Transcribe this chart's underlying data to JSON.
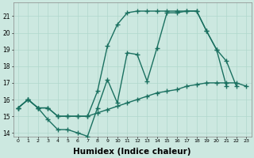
{
  "background_color": "#cce8e0",
  "grid_color": "#b0d8cc",
  "line_color": "#1a7060",
  "line_width": 1.0,
  "marker_size": 4,
  "xlabel": "Humidex (Indice chaleur)",
  "xlabel_fontsize": 7.5,
  "xlim": [
    -0.5,
    23.5
  ],
  "ylim": [
    13.8,
    21.8
  ],
  "yticks": [
    14,
    15,
    16,
    17,
    18,
    19,
    20,
    21
  ],
  "xticks": [
    0,
    1,
    2,
    3,
    4,
    5,
    6,
    7,
    8,
    9,
    10,
    11,
    12,
    13,
    14,
    15,
    16,
    17,
    18,
    19,
    20,
    21,
    22,
    23
  ],
  "series1_x": [
    0,
    1,
    2,
    3,
    4,
    5,
    6,
    7,
    8,
    9,
    10,
    11,
    12,
    13,
    14,
    15,
    16,
    17,
    18,
    19,
    20,
    21,
    22,
    23
  ],
  "series1_y": [
    15.5,
    16.0,
    15.5,
    15.5,
    15.0,
    15.0,
    15.0,
    15.0,
    15.2,
    15.4,
    15.6,
    15.8,
    16.0,
    16.2,
    16.4,
    16.5,
    16.6,
    16.8,
    16.9,
    17.0,
    17.0,
    17.0,
    17.0,
    16.8
  ],
  "series2_x": [
    0,
    1,
    2,
    3,
    4,
    5,
    6,
    7,
    8,
    9,
    10,
    11,
    12,
    13,
    14,
    15,
    16,
    17,
    18,
    19,
    20,
    21,
    22
  ],
  "series2_y": [
    15.5,
    16.0,
    15.5,
    14.8,
    14.2,
    14.2,
    14.0,
    13.8,
    15.5,
    17.2,
    15.8,
    18.8,
    18.7,
    17.1,
    19.1,
    21.2,
    21.2,
    21.3,
    21.3,
    20.1,
    19.0,
    18.3,
    16.8
  ],
  "series3_x": [
    0,
    1,
    2,
    3,
    4,
    5,
    6,
    7,
    8,
    9,
    10,
    11,
    12,
    13,
    14,
    15,
    16,
    17,
    18,
    19,
    20,
    21
  ],
  "series3_y": [
    15.5,
    16.0,
    15.5,
    15.5,
    15.0,
    15.0,
    15.0,
    15.0,
    16.5,
    19.2,
    20.5,
    21.2,
    21.3,
    21.3,
    21.3,
    21.3,
    21.3,
    21.3,
    21.3,
    20.1,
    19.0,
    16.8
  ]
}
